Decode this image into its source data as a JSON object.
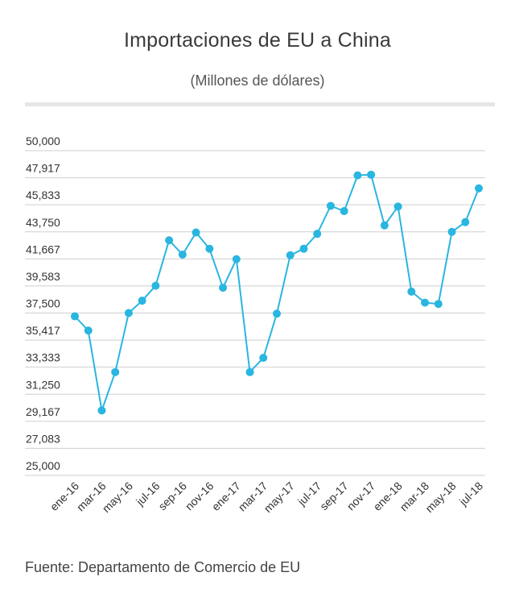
{
  "title": "Importaciones de EU a China",
  "subtitle": "(Millones de dólares)",
  "source": "Fuente: Departamento de Comercio de EU",
  "colors": {
    "series": "#29b6e0",
    "grid": "#cfcfcf",
    "divider": "#e6e6e6"
  },
  "chart_data": {
    "type": "line",
    "title": "Importaciones de EU a China",
    "subtitle": "(Millones de dólares)",
    "ylim": [
      25000,
      50000
    ],
    "yticks": [
      "50,000",
      "47,917",
      "45,833",
      "43,750",
      "41,667",
      "39,583",
      "37,500",
      "35,417",
      "33,333",
      "31,250",
      "29,167",
      "27,083",
      "25,000"
    ],
    "ytick_values": [
      50000,
      47917,
      45833,
      43750,
      41667,
      39583,
      37500,
      35417,
      33333,
      31250,
      29167,
      27083,
      25000
    ],
    "xticks": [
      "ene-16",
      "mar-16",
      "may-16",
      "jul-16",
      "sep-16",
      "nov-16",
      "ene-17",
      "mar-17",
      "may-17",
      "jul-17",
      "sep-17",
      "nov-17",
      "ene-18",
      "mar-18",
      "may-18",
      "jul-18"
    ],
    "x": [
      "ene-16",
      "feb-16",
      "mar-16",
      "abr-16",
      "may-16",
      "jun-16",
      "jul-16",
      "ago-16",
      "sep-16",
      "oct-16",
      "nov-16",
      "dic-16",
      "ene-17",
      "feb-17",
      "mar-17",
      "abr-17",
      "may-17",
      "jun-17",
      "jul-17",
      "ago-17",
      "sep-17",
      "oct-17",
      "nov-17",
      "dic-17",
      "ene-18",
      "feb-18",
      "mar-18",
      "abr-18",
      "may-18",
      "jun-18",
      "jul-18"
    ],
    "series": [
      {
        "values": [
          37250,
          36150,
          30000,
          32950,
          37500,
          38450,
          39600,
          43100,
          42000,
          43700,
          42450,
          39450,
          41650,
          32950,
          34050,
          37450,
          41950,
          42450,
          43600,
          45750,
          45350,
          48100,
          48150,
          44250,
          45700,
          39150,
          38300,
          38200,
          43750,
          44500,
          47100
        ]
      }
    ],
    "grid": true,
    "legend": "none"
  }
}
